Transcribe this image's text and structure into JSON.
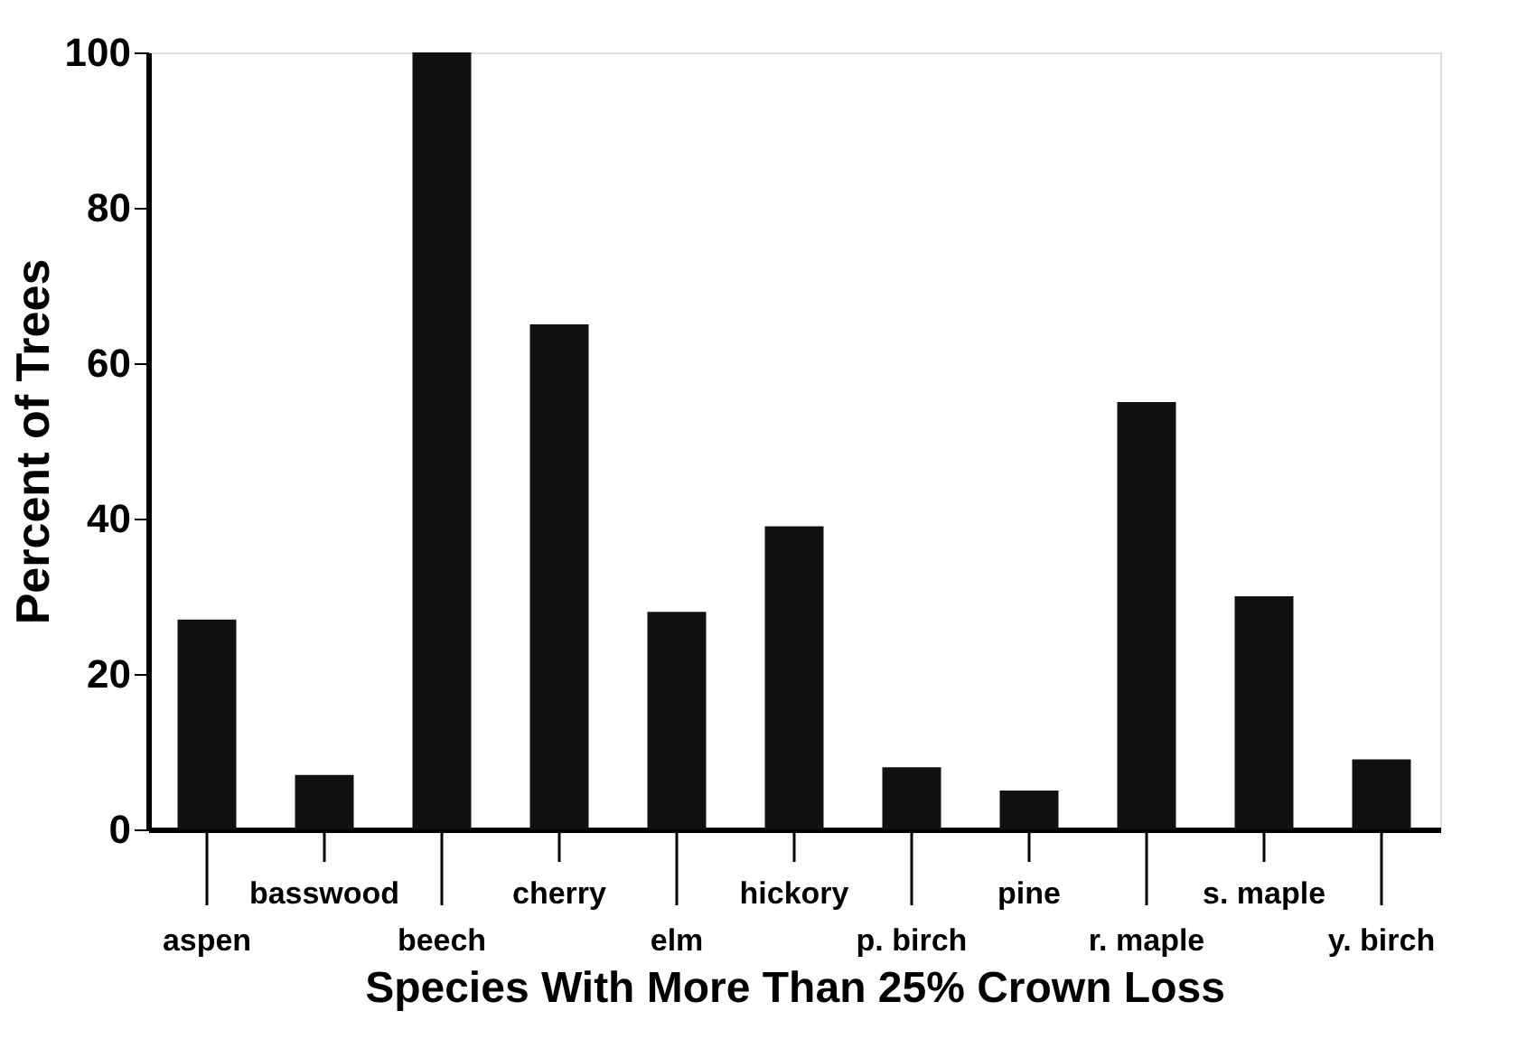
{
  "chart_data": {
    "type": "bar",
    "xlabel": "Species With More Than 25% Crown Loss",
    "ylabel": "Percent of Trees",
    "categories": [
      "aspen",
      "basswood",
      "beech",
      "cherry",
      "elm",
      "hickory",
      "p. birch",
      "pine",
      "r. maple",
      "s. maple",
      "y. birch"
    ],
    "values": [
      27,
      7,
      100,
      65,
      28,
      39,
      8,
      5,
      55,
      30,
      9
    ],
    "color": "#111111",
    "ylim": [
      0,
      100
    ],
    "yticks": [
      0,
      20,
      40,
      60,
      80,
      100
    ],
    "grid": false
  }
}
